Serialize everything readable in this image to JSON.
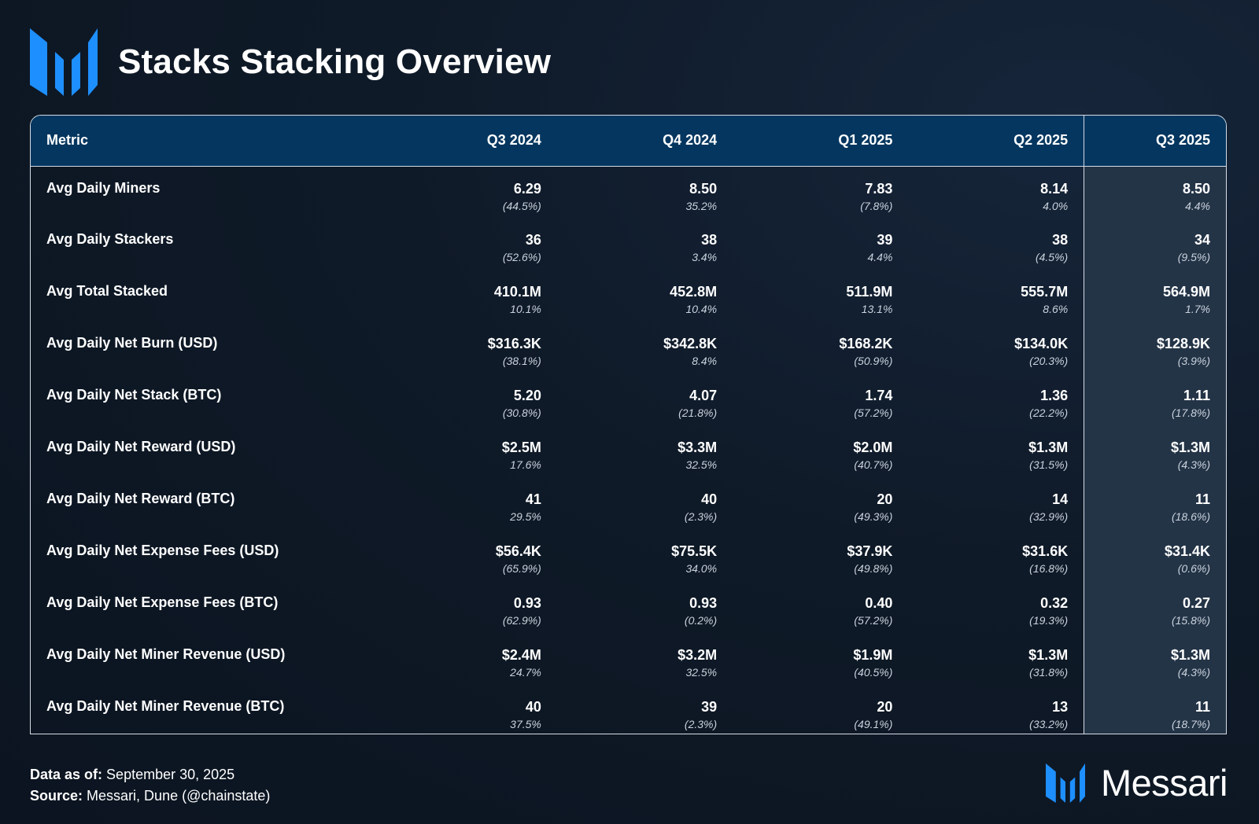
{
  "header": {
    "title": "Stacks Stacking Overview"
  },
  "chart_data": {
    "type": "table",
    "title": "Stacks Stacking Overview",
    "columns": [
      "Metric",
      "Q3 2024",
      "Q4 2024",
      "Q1 2025",
      "Q2 2025",
      "Q3 2025"
    ],
    "highlight_column": "Q3 2025",
    "rows": [
      {
        "metric": "Avg Daily Miners",
        "cells": [
          {
            "value": "6.29",
            "change": "(44.5%)"
          },
          {
            "value": "8.50",
            "change": "35.2%"
          },
          {
            "value": "7.83",
            "change": "(7.8%)"
          },
          {
            "value": "8.14",
            "change": "4.0%"
          },
          {
            "value": "8.50",
            "change": "4.4%"
          }
        ]
      },
      {
        "metric": "Avg Daily Stackers",
        "cells": [
          {
            "value": "36",
            "change": "(52.6%)"
          },
          {
            "value": "38",
            "change": "3.4%"
          },
          {
            "value": "39",
            "change": "4.4%"
          },
          {
            "value": "38",
            "change": "(4.5%)"
          },
          {
            "value": "34",
            "change": "(9.5%)"
          }
        ]
      },
      {
        "metric": "Avg Total Stacked",
        "cells": [
          {
            "value": "410.1M",
            "change": "10.1%"
          },
          {
            "value": "452.8M",
            "change": "10.4%"
          },
          {
            "value": "511.9M",
            "change": "13.1%"
          },
          {
            "value": "555.7M",
            "change": "8.6%"
          },
          {
            "value": "564.9M",
            "change": "1.7%"
          }
        ]
      },
      {
        "metric": "Avg Daily Net Burn (USD)",
        "cells": [
          {
            "value": "$316.3K",
            "change": "(38.1%)"
          },
          {
            "value": "$342.8K",
            "change": "8.4%"
          },
          {
            "value": "$168.2K",
            "change": "(50.9%)"
          },
          {
            "value": "$134.0K",
            "change": "(20.3%)"
          },
          {
            "value": "$128.9K",
            "change": "(3.9%)"
          }
        ]
      },
      {
        "metric": "Avg Daily Net Stack (BTC)",
        "cells": [
          {
            "value": "5.20",
            "change": "(30.8%)"
          },
          {
            "value": "4.07",
            "change": "(21.8%)"
          },
          {
            "value": "1.74",
            "change": "(57.2%)"
          },
          {
            "value": "1.36",
            "change": "(22.2%)"
          },
          {
            "value": "1.11",
            "change": "(17.8%)"
          }
        ]
      },
      {
        "metric": "Avg Daily Net Reward (USD)",
        "cells": [
          {
            "value": "$2.5M",
            "change": "17.6%"
          },
          {
            "value": "$3.3M",
            "change": "32.5%"
          },
          {
            "value": "$2.0M",
            "change": "(40.7%)"
          },
          {
            "value": "$1.3M",
            "change": "(31.5%)"
          },
          {
            "value": "$1.3M",
            "change": "(4.3%)"
          }
        ]
      },
      {
        "metric": "Avg Daily Net Reward (BTC)",
        "cells": [
          {
            "value": "41",
            "change": "29.5%"
          },
          {
            "value": "40",
            "change": "(2.3%)"
          },
          {
            "value": "20",
            "change": "(49.3%)"
          },
          {
            "value": "14",
            "change": "(32.9%)"
          },
          {
            "value": "11",
            "change": "(18.6%)"
          }
        ]
      },
      {
        "metric": "Avg Daily Net Expense Fees (USD)",
        "cells": [
          {
            "value": "$56.4K",
            "change": "(65.9%)"
          },
          {
            "value": "$75.5K",
            "change": "34.0%"
          },
          {
            "value": "$37.9K",
            "change": "(49.8%)"
          },
          {
            "value": "$31.6K",
            "change": "(16.8%)"
          },
          {
            "value": "$31.4K",
            "change": "(0.6%)"
          }
        ]
      },
      {
        "metric": "Avg Daily Net Expense Fees (BTC)",
        "cells": [
          {
            "value": "0.93",
            "change": "(62.9%)"
          },
          {
            "value": "0.93",
            "change": "(0.2%)"
          },
          {
            "value": "0.40",
            "change": "(57.2%)"
          },
          {
            "value": "0.32",
            "change": "(19.3%)"
          },
          {
            "value": "0.27",
            "change": "(15.8%)"
          }
        ]
      },
      {
        "metric": "Avg Daily Net Miner Revenue (USD)",
        "cells": [
          {
            "value": "$2.4M",
            "change": "24.7%"
          },
          {
            "value": "$3.2M",
            "change": "32.5%"
          },
          {
            "value": "$1.9M",
            "change": "(40.5%)"
          },
          {
            "value": "$1.3M",
            "change": "(31.8%)"
          },
          {
            "value": "$1.3M",
            "change": "(4.3%)"
          }
        ]
      },
      {
        "metric": "Avg Daily Net Miner Revenue (BTC)",
        "cells": [
          {
            "value": "40",
            "change": "37.5%"
          },
          {
            "value": "39",
            "change": "(2.3%)"
          },
          {
            "value": "20",
            "change": "(49.1%)"
          },
          {
            "value": "13",
            "change": "(33.2%)"
          },
          {
            "value": "11",
            "change": "(18.7%)"
          }
        ]
      }
    ]
  },
  "footer": {
    "data_as_of_label": "Data as of:",
    "data_as_of_value": "September 30, 2025",
    "source_label": "Source:",
    "source_value": "Messari, Dune (@chainstate)"
  },
  "brand": {
    "name": "Messari",
    "icon": "messari-logo-icon"
  },
  "colors": {
    "accent_blue": "#1e90ff",
    "header_row": "#04365f",
    "highlight_column": "#243447"
  }
}
